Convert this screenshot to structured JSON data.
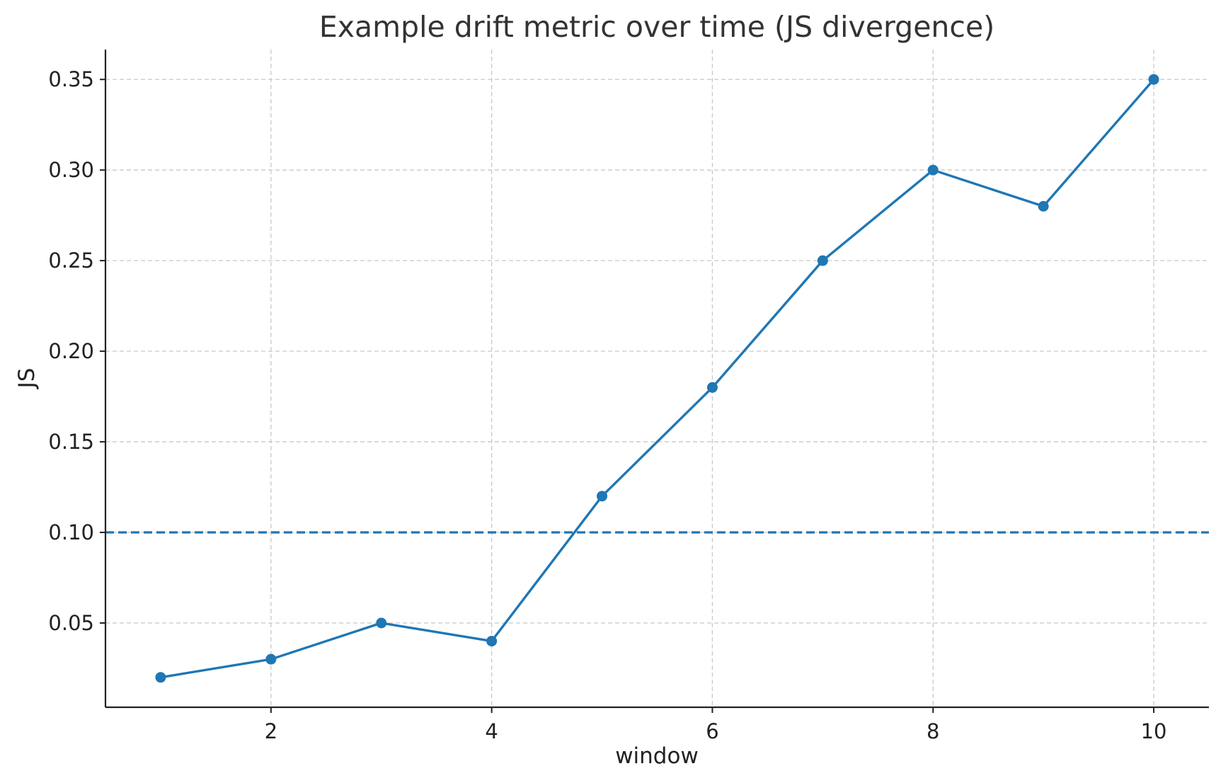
{
  "chart_data": {
    "type": "line",
    "title": "Example drift metric over time (JS divergence)",
    "xlabel": "window",
    "ylabel": "JS",
    "xlim": [
      0.5,
      10.5
    ],
    "ylim": [
      0.0035,
      0.3665
    ],
    "xticks": [
      2,
      4,
      6,
      8,
      10
    ],
    "xtick_labels": [
      "2",
      "4",
      "6",
      "8",
      "10"
    ],
    "yticks": [
      0.05,
      0.1,
      0.15,
      0.2,
      0.25,
      0.3,
      0.35
    ],
    "ytick_labels": [
      "0.05",
      "0.10",
      "0.15",
      "0.20",
      "0.25",
      "0.30",
      "0.35"
    ],
    "grid": true,
    "series": [
      {
        "x": [
          1,
          2,
          3,
          4,
          5,
          6,
          7,
          8,
          9,
          10
        ],
        "values": [
          0.02,
          0.03,
          0.05,
          0.04,
          0.12,
          0.18,
          0.25,
          0.3,
          0.28,
          0.35
        ],
        "color": "#1f77b4",
        "marker": "circle"
      }
    ],
    "threshold": {
      "y": 0.1,
      "style": "dashed",
      "color": "#1f77b4"
    }
  }
}
